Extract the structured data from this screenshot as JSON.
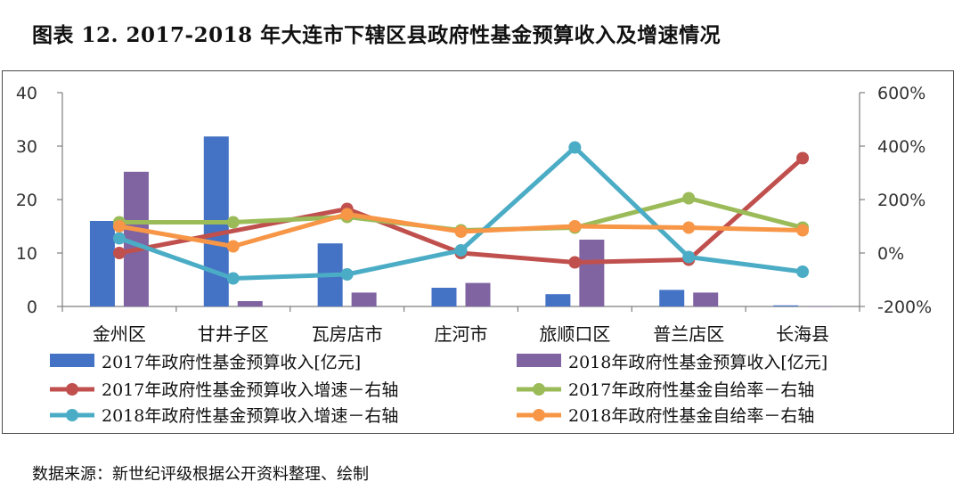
{
  "title": "图表 12. 2017-2018 年大连市下辖区县政府性基金预算收入及增速情况",
  "source": "数据来源：新世纪评级根据公开资料整理、绘制",
  "chart_data": {
    "type": "bar",
    "categories": [
      "金州区",
      "甘井子区",
      "瓦房店市",
      "庄河市",
      "旅顺口区",
      "普兰店区",
      "长海县"
    ],
    "left_axis": {
      "min": 0,
      "max": 40,
      "ticks": [
        "0",
        "10",
        "20",
        "30",
        "40"
      ],
      "tick_values": [
        0,
        10,
        20,
        30,
        40
      ]
    },
    "right_axis": {
      "min": -200,
      "max": 600,
      "ticks": [
        "-200%",
        "0%",
        "200%",
        "400%",
        "600%"
      ],
      "tick_values": [
        -200,
        0,
        200,
        400,
        600
      ]
    },
    "bar_series": [
      {
        "name": "2017年政府性基金预算收入[亿元]",
        "color": "#4472C4",
        "values": [
          16.0,
          31.8,
          11.8,
          3.5,
          2.3,
          3.1,
          0.2
        ]
      },
      {
        "name": "2018年政府性基金预算收入[亿元]",
        "color": "#8064A2",
        "values": [
          25.2,
          1.0,
          2.6,
          4.4,
          12.5,
          2.6,
          0.0
        ]
      }
    ],
    "line_series": [
      {
        "name": "2017年政府性基金预算收入增速－右轴",
        "color": "#C0504D",
        "axis": "right",
        "values": [
          0,
          null,
          165,
          0,
          -35,
          -25,
          355
        ]
      },
      {
        "name": "2017年政府性基金自给率－右轴",
        "color": "#9BBB59",
        "axis": "right",
        "values": [
          115,
          115,
          135,
          85,
          95,
          205,
          95
        ]
      },
      {
        "name": "2018年政府性基金预算收入增速－右轴",
        "color": "#4BACC6",
        "axis": "right",
        "values": [
          55,
          -95,
          -80,
          10,
          395,
          -15,
          -70
        ]
      },
      {
        "name": "2018年政府性基金自给率－右轴",
        "color": "#F79646",
        "axis": "right",
        "values": [
          100,
          25,
          145,
          80,
          100,
          95,
          85
        ]
      }
    ],
    "legend_position": "bottom"
  }
}
